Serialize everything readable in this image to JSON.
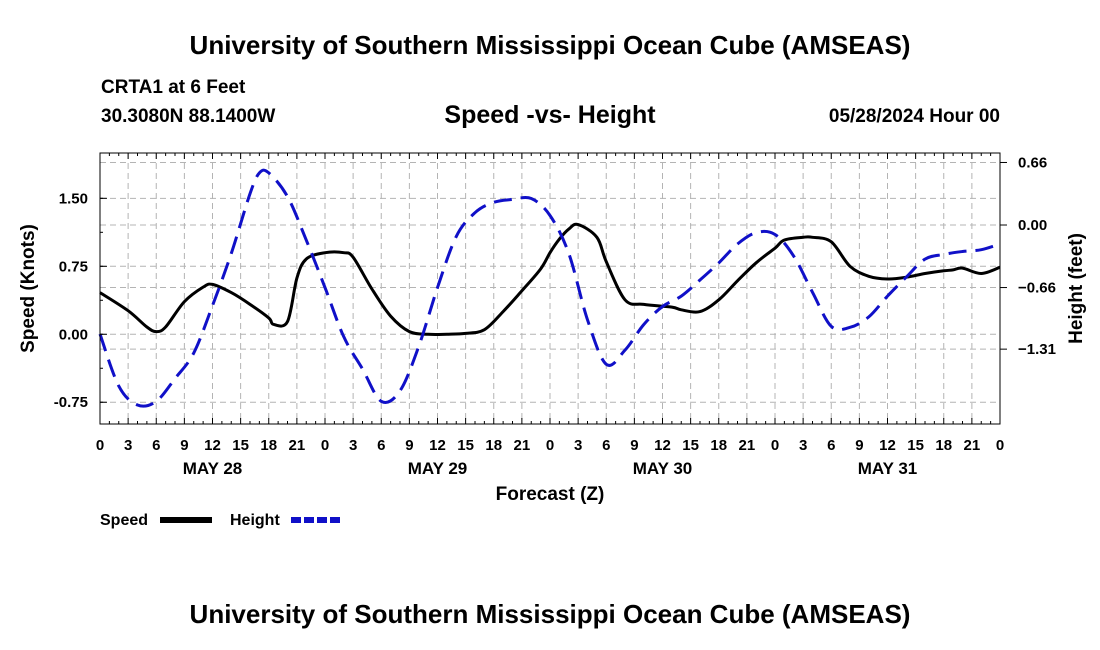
{
  "header": {
    "title": "University of Southern Mississippi Ocean Cube (AMSEAS)",
    "station": "CRTA1 at 6 Feet",
    "coords": "30.3080N  88.1400W",
    "subtitle": "Speed -vs- Height",
    "datetime": "05/28/2024 Hour 00"
  },
  "footer": {
    "title": "University of Southern Mississippi Ocean Cube (AMSEAS)"
  },
  "colors": {
    "speed": "#000000",
    "height": "#1010c8",
    "grid": "#b4b4b4"
  },
  "chart_data": {
    "type": "line",
    "xlabel": "Forecast (Z)",
    "ylabel": "Speed (Knots)",
    "ylabel_right": "Height (feet)",
    "x_range": [
      0,
      96
    ],
    "x_tick_labels": [
      "0",
      "3",
      "6",
      "9",
      "12",
      "15",
      "18",
      "21",
      "0",
      "3",
      "6",
      "9",
      "12",
      "15",
      "18",
      "21",
      "0",
      "3",
      "6",
      "9",
      "12",
      "15",
      "18",
      "21",
      "0",
      "3",
      "6",
      "9",
      "12",
      "15",
      "18",
      "21",
      "0"
    ],
    "day_labels": [
      {
        "label": "MAY 28",
        "hour": 12
      },
      {
        "label": "MAY 29",
        "hour": 36
      },
      {
        "label": "MAY 30",
        "hour": 60
      },
      {
        "label": "MAY 31",
        "hour": 84
      }
    ],
    "y_left": {
      "range": [
        -0.99,
        2.0
      ],
      "ticks": [
        -0.75,
        0.0,
        0.75,
        1.5
      ],
      "tick_labels": [
        "-0.75",
        "0.00",
        "0.75",
        "1.50"
      ]
    },
    "y_right": {
      "range": [
        -2.1,
        0.76
      ],
      "ticks": [
        -1.31,
        -0.66,
        0.0,
        0.66
      ],
      "tick_labels": [
        "−1.31",
        "−0.66",
        "0.00",
        "0.66"
      ]
    },
    "legend": [
      {
        "name": "Speed",
        "style": "solid"
      },
      {
        "name": "Height",
        "style": "dashed"
      }
    ],
    "series": [
      {
        "name": "Speed",
        "axis": "left",
        "style": "solid",
        "x": [
          0,
          3,
          5,
          6,
          7,
          9,
          11,
          12,
          14,
          16,
          18,
          18.5,
          20,
          21,
          22,
          24,
          26,
          27,
          29,
          31,
          33,
          35,
          37,
          39,
          41,
          43,
          45,
          47,
          48,
          49,
          50,
          51,
          53,
          54,
          56,
          58,
          61,
          62,
          64,
          66,
          68,
          70,
          72,
          73,
          75,
          76,
          78,
          80,
          82,
          84,
          86,
          88,
          90,
          91,
          92,
          94,
          96
        ],
        "y": [
          0.46,
          0.26,
          0.08,
          0.03,
          0.08,
          0.36,
          0.52,
          0.55,
          0.46,
          0.33,
          0.18,
          0.11,
          0.14,
          0.62,
          0.83,
          0.9,
          0.9,
          0.85,
          0.5,
          0.2,
          0.03,
          0.0,
          0.0,
          0.01,
          0.05,
          0.25,
          0.48,
          0.72,
          0.9,
          1.05,
          1.16,
          1.21,
          1.07,
          0.8,
          0.38,
          0.33,
          0.3,
          0.27,
          0.25,
          0.38,
          0.59,
          0.79,
          0.95,
          1.04,
          1.07,
          1.07,
          1.02,
          0.75,
          0.64,
          0.61,
          0.63,
          0.67,
          0.7,
          0.71,
          0.73,
          0.67,
          0.74
        ]
      },
      {
        "name": "Height",
        "axis": "right",
        "style": "dashed",
        "x": [
          0,
          2,
          4,
          6,
          8,
          10,
          12,
          14,
          16,
          17,
          18,
          20,
          22,
          24,
          26,
          28,
          30,
          32,
          34,
          36,
          38,
          40,
          42,
          44,
          46,
          48,
          50,
          52,
          54,
          56,
          58,
          60,
          62,
          64,
          66,
          68,
          70,
          72,
          74,
          76,
          78,
          80,
          82,
          84,
          86,
          88,
          90,
          92,
          94,
          96
        ],
        "y": [
          -1.15,
          -1.7,
          -1.9,
          -1.86,
          -1.62,
          -1.35,
          -0.85,
          -0.3,
          0.33,
          0.55,
          0.55,
          0.3,
          -0.16,
          -0.66,
          -1.18,
          -1.52,
          -1.86,
          -1.75,
          -1.28,
          -0.66,
          -0.12,
          0.13,
          0.24,
          0.27,
          0.28,
          0.1,
          -0.3,
          -1.0,
          -1.47,
          -1.32,
          -1.05,
          -0.86,
          -0.75,
          -0.58,
          -0.4,
          -0.2,
          -0.08,
          -0.1,
          -0.33,
          -0.71,
          -1.07,
          -1.08,
          -0.97,
          -0.75,
          -0.55,
          -0.36,
          -0.31,
          -0.28,
          -0.26,
          -0.2
        ]
      }
    ]
  }
}
